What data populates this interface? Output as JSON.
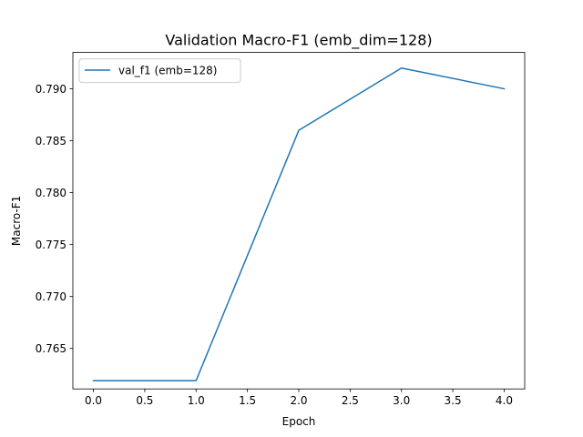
{
  "chart_data": {
    "type": "line",
    "title": "Validation Macro-F1 (emb_dim=128)",
    "xlabel": "Epoch",
    "ylabel": "Macro-F1",
    "xlim": [
      -0.2,
      4.2
    ],
    "ylim": [
      0.7611,
      0.7935
    ],
    "x_ticks": [
      0.0,
      0.5,
      1.0,
      1.5,
      2.0,
      2.5,
      3.0,
      3.5,
      4.0
    ],
    "x_tick_labels": [
      "0.0",
      "0.5",
      "1.0",
      "1.5",
      "2.0",
      "2.5",
      "3.0",
      "3.5",
      "4.0"
    ],
    "y_ticks": [
      0.765,
      0.77,
      0.775,
      0.78,
      0.785,
      0.79
    ],
    "y_tick_labels": [
      "0.765",
      "0.770",
      "0.775",
      "0.780",
      "0.785",
      "0.790"
    ],
    "grid": false,
    "legend_position": "top-left",
    "series": [
      {
        "name": "val_f1 (emb=128)",
        "color": "#1f77b4",
        "x": [
          0,
          1,
          2,
          3,
          4
        ],
        "y": [
          0.7619,
          0.7619,
          0.786,
          0.792,
          0.79
        ]
      }
    ]
  }
}
